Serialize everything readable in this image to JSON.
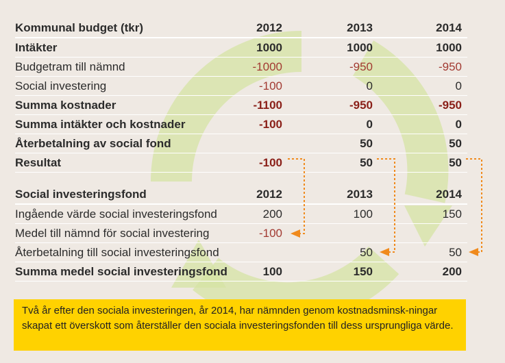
{
  "budget": {
    "header": {
      "label": "Kommunal budget (tkr)",
      "y2012": "2012",
      "y2013": "2013",
      "y2014": "2014"
    },
    "rows": [
      {
        "label": "Intäkter",
        "v2012": "1000",
        "v2013": "1000",
        "v2014": "1000"
      },
      {
        "label": "Budgetram till nämnd",
        "v2012": "-1000",
        "v2013": "-950",
        "v2014": "-950"
      },
      {
        "label": "Social investering",
        "v2012": "-100",
        "v2013": "0",
        "v2014": "0"
      },
      {
        "label": "Summa kostnader",
        "v2012": "-1100",
        "v2013": "-950",
        "v2014": "-950"
      },
      {
        "label": "Summa intäkter och kostnader",
        "v2012": "-100",
        "v2013": "0",
        "v2014": "0"
      },
      {
        "label": "Återbetalning av social fond",
        "v2012": "",
        "v2013": "50",
        "v2014": "50"
      },
      {
        "label": "Resultat",
        "v2012": "-100",
        "v2013": "50",
        "v2014": "50"
      }
    ]
  },
  "fund": {
    "header": {
      "label": "Social investeringsfond",
      "y2012": "2012",
      "y2013": "2013",
      "y2014": "2014"
    },
    "rows": [
      {
        "label": "Ingående värde social investeringsfond",
        "v2012": "200",
        "v2013": "100",
        "v2014": "150"
      },
      {
        "label": "Medel till nämnd för social investering",
        "v2012": "-100",
        "v2013": "",
        "v2014": ""
      },
      {
        "label": "Återbetalning till social investeringsfond",
        "v2012": "",
        "v2013": "50",
        "v2014": "50"
      },
      {
        "label": "Summa medel social investeringsfond",
        "v2012": "100",
        "v2013": "150",
        "v2014": "200"
      }
    ]
  },
  "note": "Två år efter den sociala investeringen, år 2014, har nämnden genom kostnadsminsk-ningar skapat ett överskott som återställer den sociala investeringsfonden till dess ursprungliga värde.",
  "colors": {
    "background": "#efe9e3",
    "note_bg": "#ffd200",
    "arrow_bg": "#d6e3a4",
    "connector": "#f08a1c",
    "negative": "#a23a32"
  }
}
